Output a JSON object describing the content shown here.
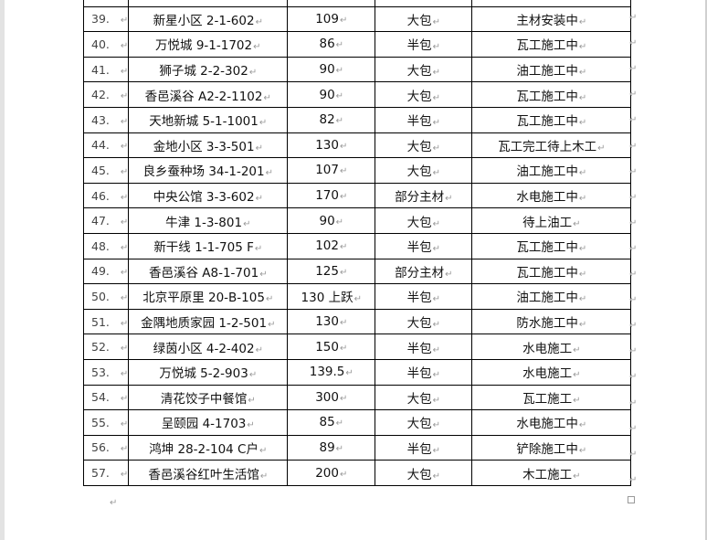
{
  "table": {
    "rows": [
      {
        "no": "39.",
        "address": "新星小区 2-1-602",
        "area": "109",
        "type": "大包",
        "status": "主材安装中"
      },
      {
        "no": "40.",
        "address": "万悦城 9-1-1702",
        "area": "86",
        "type": "半包",
        "status": "瓦工施工中"
      },
      {
        "no": "41.",
        "address": "狮子城 2-2-302",
        "area": "90",
        "type": "大包",
        "status": "油工施工中"
      },
      {
        "no": "42.",
        "address": "香邑溪谷 A2-2-1102",
        "area": "90",
        "type": "大包",
        "status": "瓦工施工中"
      },
      {
        "no": "43.",
        "address": "天地新城 5-1-1001",
        "area": "82",
        "type": "半包",
        "status": "瓦工施工中"
      },
      {
        "no": "44.",
        "address": "金地小区 3-3-501",
        "area": "130",
        "type": "大包",
        "status": "瓦工完工待上木工"
      },
      {
        "no": "45.",
        "address": "良乡蚕种场 34-1-201",
        "area": "107",
        "type": "大包",
        "status": "油工施工中"
      },
      {
        "no": "46.",
        "address": "中央公馆 3-3-602",
        "area": "170",
        "type": "部分主材",
        "status": "水电施工中"
      },
      {
        "no": "47.",
        "address": "牛津 1-3-801",
        "area": "90",
        "type": "大包",
        "status": "待上油工"
      },
      {
        "no": "48.",
        "address": "新干线 1-1-705 F",
        "area": "102",
        "type": "半包",
        "status": "瓦工施工中"
      },
      {
        "no": "49.",
        "address": "香邑溪谷 A8-1-701",
        "area": "125",
        "type": "部分主材",
        "status": "瓦工施工中"
      },
      {
        "no": "50.",
        "address": "北京平原里 20-B-105",
        "area": "130 上跃",
        "type": "半包",
        "status": "油工施工中"
      },
      {
        "no": "51.",
        "address": "金隅地质家园 1-2-501",
        "area": "130",
        "type": "大包",
        "status": "防水施工中"
      },
      {
        "no": "52.",
        "address": "绿茵小区 4-2-402",
        "area": "150",
        "type": "半包",
        "status": "水电施工"
      },
      {
        "no": "53.",
        "address": "万悦城 5-2-903",
        "area": "139.5",
        "type": "半包",
        "status": "水电施工"
      },
      {
        "no": "54.",
        "address": "清花饺子中餐馆",
        "area": "300",
        "type": "大包",
        "status": "瓦工施工"
      },
      {
        "no": "55.",
        "address": "呈颐园 4-1703",
        "area": "85",
        "type": "大包",
        "status": "水电施工中"
      },
      {
        "no": "56.",
        "address": "鸿坤 28-2-104 C户",
        "area": "89",
        "type": "半包",
        "status": "铲除施工中"
      },
      {
        "no": "57.",
        "address": "香邑溪谷红叶生活馆",
        "area": "200",
        "type": "大包",
        "status": "木工施工"
      }
    ]
  },
  "marks": {
    "paragraph": "↵"
  }
}
